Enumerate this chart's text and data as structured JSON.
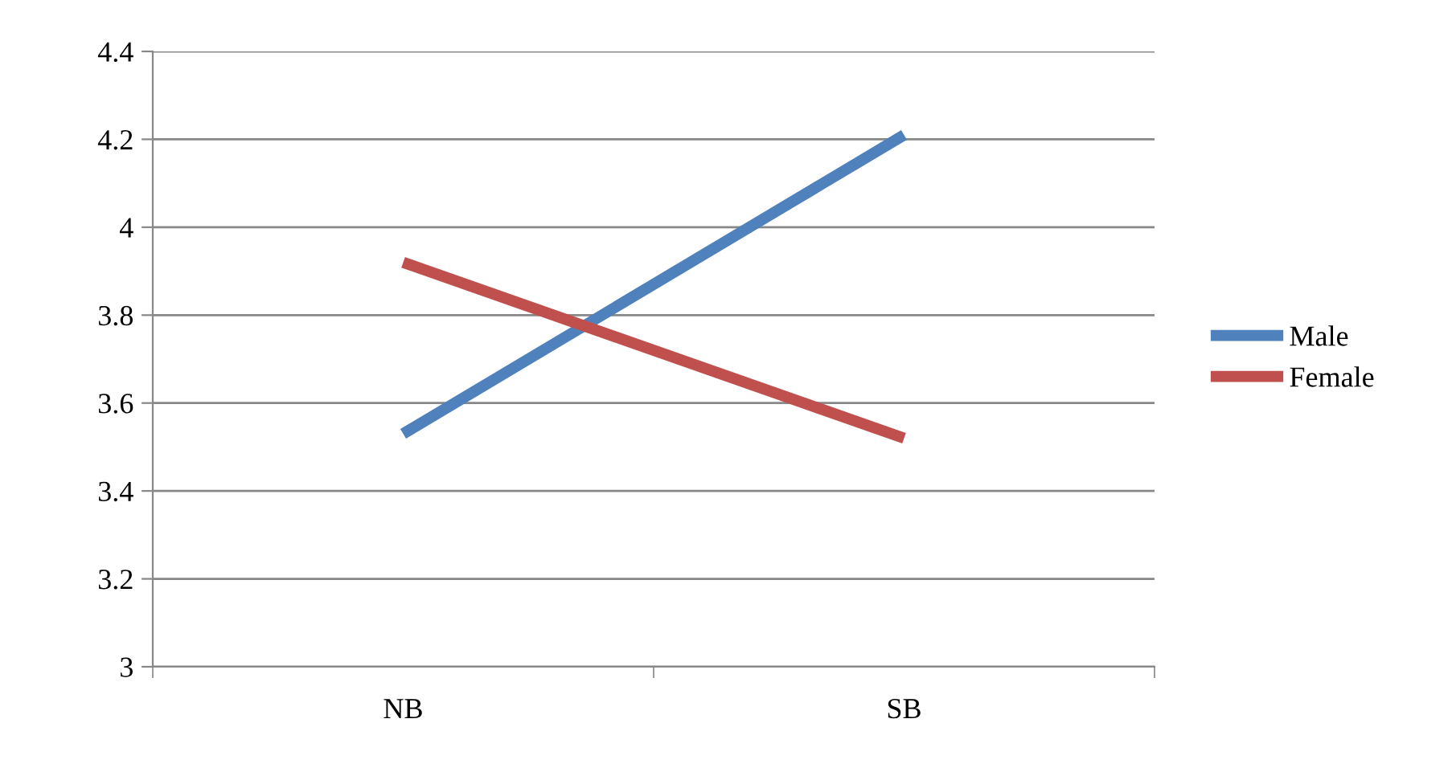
{
  "chart_data": {
    "type": "line",
    "categories": [
      "NB",
      "SB"
    ],
    "series": [
      {
        "name": "Male",
        "color": "#4f81bd",
        "values": [
          3.53,
          4.21
        ]
      },
      {
        "name": "Female",
        "color": "#c0504d",
        "values": [
          3.92,
          3.52
        ]
      }
    ],
    "ylim": [
      3,
      4.4
    ],
    "yticks": [
      3,
      3.2,
      3.4,
      3.6,
      3.8,
      4,
      4.2,
      4.4
    ],
    "grid": "y",
    "legend": "right",
    "marker": "none",
    "line_style": "solid"
  }
}
